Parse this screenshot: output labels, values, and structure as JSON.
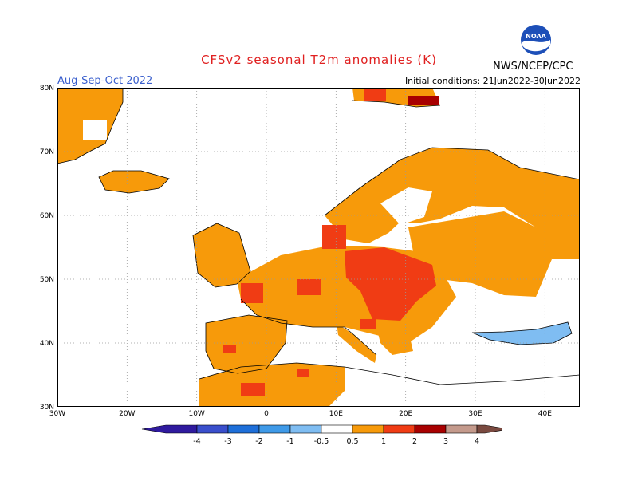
{
  "title": "CFSv2 seasonal T2m anomalies (K)",
  "period": "Aug-Sep-Oct 2022",
  "initial_conditions": "Initial conditions: 21Jun2022-30Jun2022",
  "agency": "NWS/NCEP/CPC",
  "logo_text": "NOAA",
  "map": {
    "lon_range": [
      -30,
      45
    ],
    "lat_range": [
      30,
      80
    ],
    "lat_ticks": [
      "30N",
      "40N",
      "50N",
      "60N",
      "70N",
      "80N"
    ],
    "lon_ticks": [
      "30W",
      "20W",
      "10W",
      "0",
      "10E",
      "20E",
      "30E",
      "40E"
    ],
    "grid": "dotted"
  },
  "colorbar": {
    "labels": [
      "-4",
      "-3",
      "-2",
      "-1",
      "-0.5",
      "0.5",
      "1",
      "2",
      "3",
      "4"
    ],
    "colors": [
      "#2f1a9e",
      "#3a4fcc",
      "#1e6fd9",
      "#3f9ae8",
      "#7fbdf2",
      "#ffffff",
      "#f79a0a",
      "#f03c14",
      "#a80000",
      "#c49a8c",
      "#7a4a40"
    ]
  }
}
